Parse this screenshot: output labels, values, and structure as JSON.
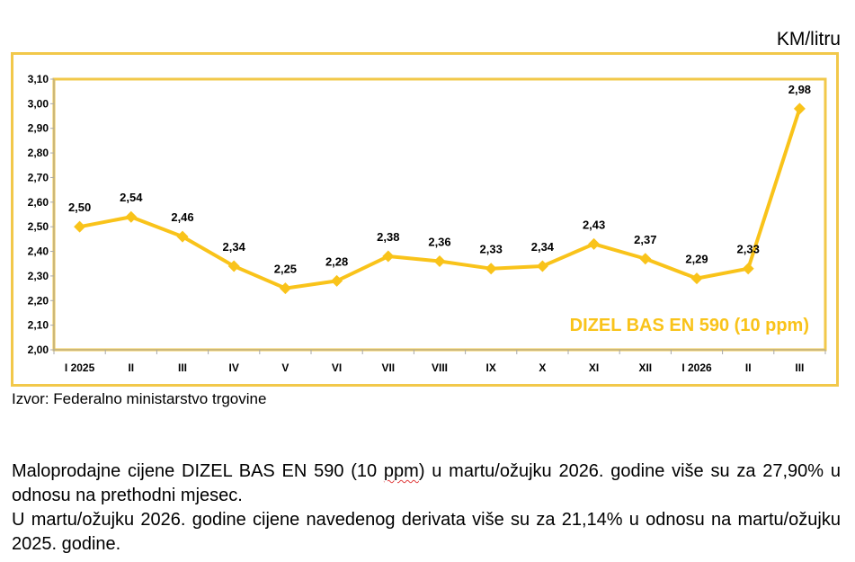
{
  "unit_label": "KM/litru",
  "source_text": "Izvor: Federalno ministarstvo trgovine",
  "colors": {
    "series": "#f9c31a",
    "frame": "#f2c84a",
    "axis": "#a8a8a8"
  },
  "paragraphs": {
    "p1_before": "Maloprodajne cijene DIZEL BAS EN 590 (10 ",
    "p1_mark": "ppm",
    "p1_after": ") u martu/ožujku 2026. godine više su za 27,90% u odnosu na prethodni mjesec.",
    "p2": "U martu/ožujku 2026. godine cijene navedenog derivata više su za 21,14% u odnosu na martu/ožujku 2025. godine."
  },
  "chart_data": {
    "type": "line",
    "title": "",
    "xlabel": "",
    "ylabel": "",
    "categories": [
      "I 2025",
      "II",
      "III",
      "IV",
      "V",
      "VI",
      "VII",
      "VIII",
      "IX",
      "X",
      "XI",
      "XII",
      "I 2026",
      "II",
      "III"
    ],
    "series": [
      {
        "name": "DIZEL BAS EN 590 (10 ppm)",
        "values": [
          2.5,
          2.54,
          2.46,
          2.34,
          2.25,
          2.28,
          2.38,
          2.36,
          2.33,
          2.34,
          2.43,
          2.37,
          2.29,
          2.33,
          2.98
        ],
        "labels": [
          "2,50",
          "2,54",
          "2,46",
          "2,34",
          "2,25",
          "2,28",
          "2,38",
          "2,36",
          "2,33",
          "2,34",
          "2,43",
          "2,37",
          "2,29",
          "2,33",
          "2,98"
        ],
        "marker": "diamond"
      }
    ],
    "ylim": [
      2.0,
      3.1
    ],
    "yticks": [
      2.0,
      2.1,
      2.2,
      2.3,
      2.4,
      2.5,
      2.6,
      2.7,
      2.8,
      2.9,
      3.0,
      3.1
    ],
    "ytick_labels": [
      "2,00",
      "2,10",
      "2,20",
      "2,30",
      "2,40",
      "2,50",
      "2,60",
      "2,70",
      "2,80",
      "2,90",
      "3,00",
      "3,10"
    ],
    "legend": "bottom-right",
    "grid": false
  }
}
